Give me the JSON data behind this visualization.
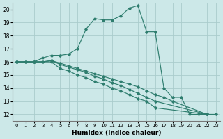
{
  "xlabel": "Humidex (Indice chaleur)",
  "background_color": "#cce8e8",
  "grid_color": "#aacccc",
  "line_color": "#2e7d6e",
  "xlim": [
    -0.5,
    23.5
  ],
  "ylim": [
    11.5,
    20.5
  ],
  "xticks": [
    0,
    1,
    2,
    3,
    4,
    5,
    6,
    7,
    8,
    9,
    10,
    11,
    12,
    13,
    14,
    15,
    16,
    17,
    18,
    19,
    20,
    21,
    22,
    23
  ],
  "yticks": [
    12,
    13,
    14,
    15,
    16,
    17,
    18,
    19,
    20
  ],
  "series": [
    {
      "x": [
        0,
        1,
        2,
        3,
        4,
        5,
        6,
        7,
        8,
        9,
        10,
        11,
        12,
        13,
        14,
        15,
        16,
        17,
        18,
        19,
        20,
        21,
        22
      ],
      "y": [
        16.0,
        16.0,
        16.0,
        16.3,
        16.5,
        16.5,
        16.6,
        17.0,
        18.5,
        19.3,
        19.2,
        19.2,
        19.5,
        20.1,
        20.3,
        18.3,
        18.3,
        14.0,
        13.3,
        13.3,
        12.0,
        12.0,
        12.0
      ]
    },
    {
      "x": [
        0,
        1,
        2,
        3,
        4,
        5,
        6,
        7,
        8,
        9,
        10,
        11,
        12,
        13,
        14,
        15,
        16,
        22
      ],
      "y": [
        16.0,
        16.0,
        16.0,
        16.0,
        16.0,
        15.5,
        15.3,
        15.0,
        14.8,
        14.5,
        14.3,
        14.0,
        13.8,
        13.5,
        13.2,
        13.0,
        12.5,
        12.0
      ]
    },
    {
      "x": [
        0,
        1,
        2,
        3,
        4,
        5,
        6,
        7,
        8,
        9,
        10,
        11,
        12,
        13,
        14,
        15,
        16,
        22
      ],
      "y": [
        16.0,
        16.0,
        16.0,
        16.0,
        16.1,
        15.8,
        15.6,
        15.4,
        15.2,
        14.9,
        14.7,
        14.4,
        14.2,
        13.9,
        13.6,
        13.3,
        13.0,
        12.0
      ]
    },
    {
      "x": [
        0,
        1,
        2,
        3,
        4,
        5,
        6,
        7,
        8,
        9,
        10,
        11,
        12,
        13,
        14,
        15,
        16,
        17,
        18,
        22,
        23
      ],
      "y": [
        16.0,
        16.0,
        16.0,
        16.0,
        16.1,
        15.9,
        15.7,
        15.5,
        15.3,
        15.1,
        14.9,
        14.7,
        14.5,
        14.3,
        14.1,
        13.8,
        13.5,
        13.3,
        13.0,
        12.0,
        12.0
      ]
    }
  ]
}
